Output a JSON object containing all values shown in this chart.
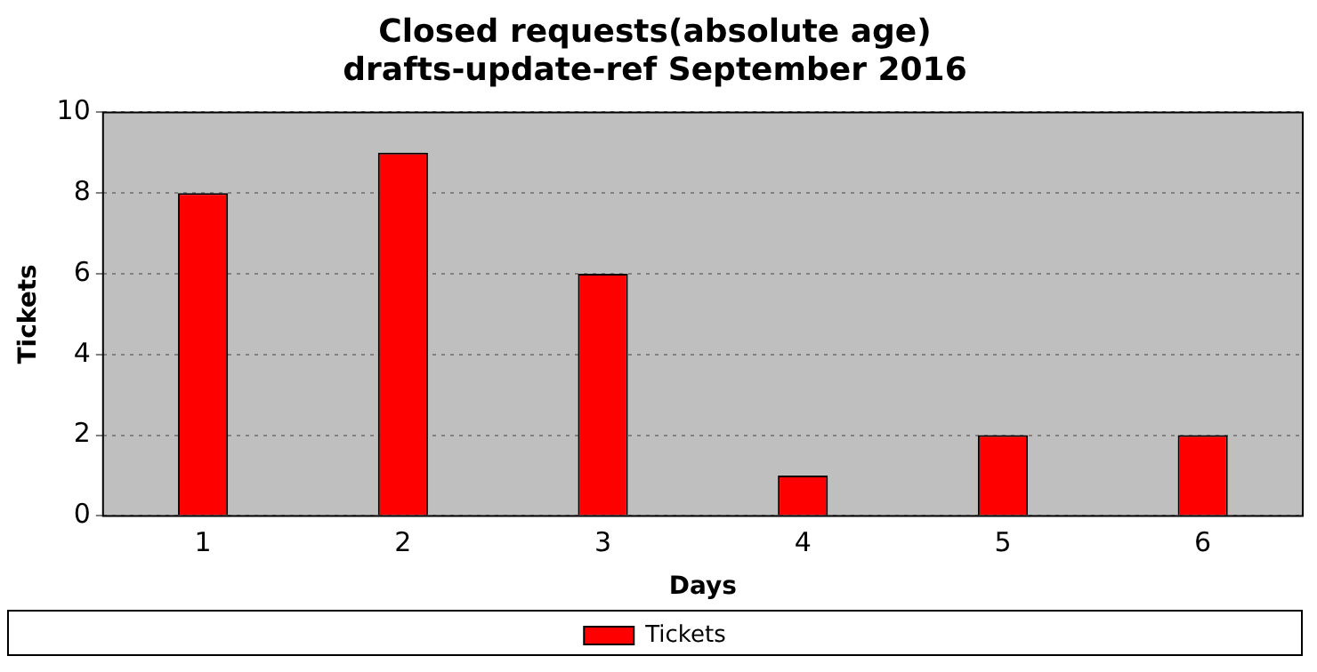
{
  "chart_data": {
    "type": "bar",
    "title": "Closed requests(absolute age)",
    "subtitle": "drafts-update-ref September 2016",
    "xlabel": "Days",
    "ylabel": "Tickets",
    "categories": [
      "1",
      "2",
      "3",
      "4",
      "5",
      "6"
    ],
    "series": [
      {
        "name": "Tickets",
        "color": "#ff0000",
        "values": [
          8,
          9,
          6,
          1,
          2,
          2
        ]
      }
    ],
    "ylim": [
      0,
      10
    ],
    "yticks": [
      0,
      2,
      4,
      6,
      8,
      10
    ],
    "grid": "y",
    "legend": "bottom"
  }
}
